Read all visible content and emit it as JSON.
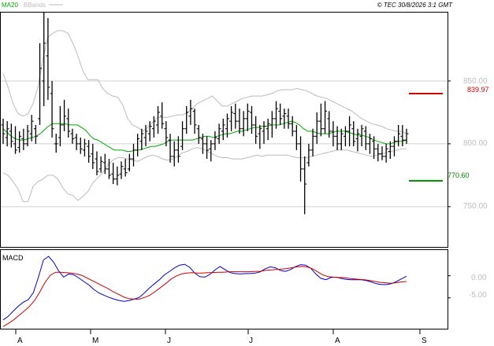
{
  "header": {
    "legend_ma": "MA20",
    "legend_bb": "BBands",
    "copyright": "© TEC 30/8/2026 3:1 GMT"
  },
  "price_panel": {
    "ylabels": [
      "850.00",
      "800.00",
      "750.00"
    ],
    "resistance_label": "839.97",
    "support_label": "770.60"
  },
  "macd_panel": {
    "title": "MACD",
    "ylabels": [
      "0.00",
      "-5.00"
    ]
  },
  "xaxis": {
    "months": [
      "A",
      "M",
      "J",
      "J",
      "A",
      "S"
    ]
  },
  "colors": {
    "ma": "#00aa00",
    "bbands": "#bbbbbb",
    "resistance": "#cc0000",
    "support": "#008800",
    "macd_line": "#0000cc",
    "signal_line": "#cc0000",
    "bars": "#000000"
  },
  "chart_data": [
    {
      "type": "ohlc",
      "name": "price",
      "ylim": [
        718,
        905
      ],
      "yticks": [
        850,
        800,
        750
      ],
      "resistance": 839.97,
      "support": 770.6,
      "bars": [
        {
          "h": 820,
          "l": 800,
          "o": 815,
          "c": 808
        },
        {
          "h": 818,
          "l": 798,
          "o": 805,
          "c": 812
        },
        {
          "h": 816,
          "l": 797,
          "o": 810,
          "c": 802
        },
        {
          "h": 814,
          "l": 792,
          "o": 800,
          "c": 795
        },
        {
          "h": 810,
          "l": 793,
          "o": 797,
          "c": 806
        },
        {
          "h": 812,
          "l": 795,
          "o": 804,
          "c": 800
        },
        {
          "h": 815,
          "l": 798,
          "o": 800,
          "c": 810
        },
        {
          "h": 823,
          "l": 802,
          "o": 808,
          "c": 818
        },
        {
          "h": 815,
          "l": 800,
          "o": 812,
          "c": 806
        },
        {
          "h": 880,
          "l": 815,
          "o": 820,
          "c": 860
        },
        {
          "h": 905,
          "l": 830,
          "o": 850,
          "c": 880
        },
        {
          "h": 900,
          "l": 835,
          "o": 870,
          "c": 845
        },
        {
          "h": 850,
          "l": 805,
          "o": 840,
          "c": 812
        },
        {
          "h": 808,
          "l": 793,
          "o": 800,
          "c": 800
        },
        {
          "h": 830,
          "l": 798,
          "o": 805,
          "c": 815
        },
        {
          "h": 835,
          "l": 810,
          "o": 815,
          "c": 822
        },
        {
          "h": 828,
          "l": 805,
          "o": 820,
          "c": 810
        },
        {
          "h": 812,
          "l": 800,
          "o": 808,
          "c": 804
        },
        {
          "h": 808,
          "l": 795,
          "o": 805,
          "c": 800
        },
        {
          "h": 805,
          "l": 792,
          "o": 800,
          "c": 796
        },
        {
          "h": 804,
          "l": 790,
          "o": 795,
          "c": 800
        },
        {
          "h": 803,
          "l": 785,
          "o": 798,
          "c": 790
        },
        {
          "h": 800,
          "l": 780,
          "o": 792,
          "c": 785
        },
        {
          "h": 794,
          "l": 775,
          "o": 788,
          "c": 778
        },
        {
          "h": 790,
          "l": 777,
          "o": 780,
          "c": 786
        },
        {
          "h": 792,
          "l": 776,
          "o": 785,
          "c": 780
        },
        {
          "h": 788,
          "l": 772,
          "o": 780,
          "c": 775
        },
        {
          "h": 785,
          "l": 768,
          "o": 776,
          "c": 772
        },
        {
          "h": 782,
          "l": 767,
          "o": 772,
          "c": 775
        },
        {
          "h": 786,
          "l": 772,
          "o": 776,
          "c": 782
        },
        {
          "h": 788,
          "l": 774,
          "o": 780,
          "c": 777
        },
        {
          "h": 792,
          "l": 778,
          "o": 780,
          "c": 788
        },
        {
          "h": 800,
          "l": 782,
          "o": 788,
          "c": 795
        },
        {
          "h": 808,
          "l": 790,
          "o": 795,
          "c": 804
        },
        {
          "h": 812,
          "l": 795,
          "o": 802,
          "c": 808
        },
        {
          "h": 815,
          "l": 798,
          "o": 805,
          "c": 810
        },
        {
          "h": 818,
          "l": 802,
          "o": 808,
          "c": 814
        },
        {
          "h": 822,
          "l": 805,
          "o": 812,
          "c": 818
        },
        {
          "h": 830,
          "l": 808,
          "o": 815,
          "c": 825
        },
        {
          "h": 833,
          "l": 812,
          "o": 822,
          "c": 816
        },
        {
          "h": 818,
          "l": 798,
          "o": 812,
          "c": 805
        },
        {
          "h": 808,
          "l": 785,
          "o": 803,
          "c": 790
        },
        {
          "h": 802,
          "l": 782,
          "o": 790,
          "c": 795
        },
        {
          "h": 806,
          "l": 785,
          "o": 795,
          "c": 790
        },
        {
          "h": 818,
          "l": 795,
          "o": 798,
          "c": 812
        },
        {
          "h": 830,
          "l": 808,
          "o": 812,
          "c": 825
        },
        {
          "h": 835,
          "l": 815,
          "o": 822,
          "c": 828
        },
        {
          "h": 828,
          "l": 808,
          "o": 826,
          "c": 815
        },
        {
          "h": 815,
          "l": 800,
          "o": 812,
          "c": 805
        },
        {
          "h": 808,
          "l": 792,
          "o": 804,
          "c": 800
        },
        {
          "h": 806,
          "l": 788,
          "o": 800,
          "c": 795
        },
        {
          "h": 803,
          "l": 786,
          "o": 796,
          "c": 800
        },
        {
          "h": 810,
          "l": 795,
          "o": 800,
          "c": 805
        },
        {
          "h": 816,
          "l": 800,
          "o": 804,
          "c": 812
        },
        {
          "h": 820,
          "l": 803,
          "o": 810,
          "c": 815
        },
        {
          "h": 824,
          "l": 805,
          "o": 812,
          "c": 820
        },
        {
          "h": 830,
          "l": 810,
          "o": 818,
          "c": 825
        },
        {
          "h": 832,
          "l": 812,
          "o": 824,
          "c": 818
        },
        {
          "h": 828,
          "l": 808,
          "o": 818,
          "c": 812
        },
        {
          "h": 826,
          "l": 806,
          "o": 812,
          "c": 820
        },
        {
          "h": 832,
          "l": 810,
          "o": 820,
          "c": 826
        },
        {
          "h": 830,
          "l": 808,
          "o": 825,
          "c": 815
        },
        {
          "h": 822,
          "l": 800,
          "o": 815,
          "c": 806
        },
        {
          "h": 815,
          "l": 796,
          "o": 808,
          "c": 812
        },
        {
          "h": 818,
          "l": 800,
          "o": 810,
          "c": 814
        },
        {
          "h": 820,
          "l": 803,
          "o": 812,
          "c": 816
        },
        {
          "h": 826,
          "l": 805,
          "o": 815,
          "c": 820
        },
        {
          "h": 834,
          "l": 812,
          "o": 820,
          "c": 828
        },
        {
          "h": 832,
          "l": 815,
          "o": 826,
          "c": 820
        },
        {
          "h": 828,
          "l": 812,
          "o": 822,
          "c": 824
        },
        {
          "h": 828,
          "l": 812,
          "o": 822,
          "c": 816
        },
        {
          "h": 822,
          "l": 806,
          "o": 816,
          "c": 810
        },
        {
          "h": 815,
          "l": 795,
          "o": 810,
          "c": 800
        },
        {
          "h": 806,
          "l": 770,
          "o": 800,
          "c": 780
        },
        {
          "h": 790,
          "l": 744,
          "o": 780,
          "c": 768
        },
        {
          "h": 800,
          "l": 782,
          "o": 785,
          "c": 795
        },
        {
          "h": 812,
          "l": 790,
          "o": 795,
          "c": 806
        },
        {
          "h": 825,
          "l": 800,
          "o": 806,
          "c": 818
        },
        {
          "h": 832,
          "l": 806,
          "o": 818,
          "c": 812
        },
        {
          "h": 834,
          "l": 808,
          "o": 812,
          "c": 826
        },
        {
          "h": 826,
          "l": 805,
          "o": 820,
          "c": 810
        },
        {
          "h": 818,
          "l": 798,
          "o": 810,
          "c": 806
        },
        {
          "h": 814,
          "l": 795,
          "o": 806,
          "c": 800
        },
        {
          "h": 812,
          "l": 795,
          "o": 800,
          "c": 808
        },
        {
          "h": 814,
          "l": 798,
          "o": 806,
          "c": 810
        },
        {
          "h": 822,
          "l": 798,
          "o": 810,
          "c": 815
        },
        {
          "h": 818,
          "l": 798,
          "o": 812,
          "c": 802
        },
        {
          "h": 812,
          "l": 794,
          "o": 804,
          "c": 808
        },
        {
          "h": 815,
          "l": 798,
          "o": 806,
          "c": 812
        },
        {
          "h": 814,
          "l": 795,
          "o": 810,
          "c": 800
        },
        {
          "h": 808,
          "l": 792,
          "o": 800,
          "c": 804
        },
        {
          "h": 806,
          "l": 788,
          "o": 802,
          "c": 796
        },
        {
          "h": 800,
          "l": 786,
          "o": 796,
          "c": 792
        },
        {
          "h": 798,
          "l": 787,
          "o": 792,
          "c": 790
        },
        {
          "h": 800,
          "l": 785,
          "o": 790,
          "c": 796
        },
        {
          "h": 802,
          "l": 788,
          "o": 794,
          "c": 798
        },
        {
          "h": 806,
          "l": 790,
          "o": 798,
          "c": 802
        },
        {
          "h": 815,
          "l": 798,
          "o": 802,
          "c": 808
        },
        {
          "h": 815,
          "l": 798,
          "o": 806,
          "c": 803
        },
        {
          "h": 812,
          "l": 800,
          "o": 803,
          "c": 808
        }
      ],
      "ma20": [
        812,
        809,
        806,
        804,
        803,
        803,
        804,
        805,
        806,
        808,
        811,
        814,
        816,
        816,
        816,
        816,
        815,
        815,
        815,
        813,
        811,
        807,
        804,
        803,
        801,
        799,
        797,
        795,
        795,
        795,
        794,
        794,
        795,
        795,
        796,
        797,
        798,
        798,
        799,
        800,
        802,
        803,
        803,
        803,
        803,
        803,
        803,
        804,
        805,
        806,
        806,
        805,
        806,
        807,
        808,
        808,
        809,
        810,
        810,
        811,
        812,
        813,
        813,
        814,
        814,
        815,
        815,
        815,
        816,
        817,
        818,
        817,
        815,
        812,
        810,
        810,
        809,
        808,
        808,
        808,
        809,
        810,
        810,
        810,
        809,
        808,
        807,
        807,
        806,
        805,
        803,
        802,
        801,
        800,
        800,
        801,
        802,
        802,
        803
      ],
      "bb_upper": [
        856,
        845,
        832,
        824,
        822,
        824,
        832,
        845,
        868,
        885,
        888,
        890,
        890,
        888,
        880,
        870,
        858,
        851,
        851,
        851,
        844,
        840,
        838,
        837,
        831,
        820,
        815,
        813,
        810,
        813,
        817,
        821,
        821,
        821,
        822,
        823,
        823,
        825,
        828,
        832,
        834,
        836,
        838,
        834,
        830,
        830,
        832,
        834,
        836,
        837,
        838,
        838,
        838,
        839,
        840,
        842,
        843,
        843,
        843,
        844,
        843,
        842,
        840,
        838,
        837,
        836,
        834,
        832,
        830,
        828,
        826,
        823,
        820,
        818,
        816,
        815,
        814,
        812,
        811,
        810,
        810,
        808
      ],
      "bb_lower": [
        777,
        775,
        770,
        764,
        754,
        754,
        766,
        770,
        772,
        775,
        775,
        772,
        765,
        760,
        759,
        755,
        758,
        762,
        769,
        773,
        777,
        783,
        787,
        789,
        789,
        788,
        787,
        786,
        788,
        790,
        791,
        790,
        788,
        787,
        788,
        790,
        793,
        794,
        796,
        797,
        796,
        794,
        792,
        790,
        789,
        789,
        788,
        788,
        788,
        789,
        790,
        791,
        790,
        791,
        791,
        791,
        791,
        791,
        790,
        789,
        789,
        789,
        790,
        791,
        792,
        793,
        794,
        795,
        795,
        795,
        794,
        793,
        792,
        791,
        790,
        791,
        792,
        793,
        794,
        795,
        796,
        796
      ]
    },
    {
      "type": "line",
      "name": "macd",
      "ylim": [
        -12.0,
        6.0
      ],
      "yticks": [
        0,
        -5
      ],
      "series": [
        {
          "name": "MACD",
          "values": [
            -10.0,
            -9.2,
            -8.0,
            -6.9,
            -6.0,
            -5.4,
            -3.8,
            -0.3,
            3.6,
            4.4,
            3.1,
            1.1,
            -0.3,
            0.4,
            0.2,
            -0.5,
            -1.3,
            -2.1,
            -3.1,
            -3.9,
            -4.4,
            -4.9,
            -5.3,
            -5.6,
            -5.8,
            -5.6,
            -5.3,
            -4.9,
            -3.9,
            -2.8,
            -1.8,
            -0.9,
            0.2,
            1.0,
            1.8,
            2.4,
            2.6,
            1.9,
            0.6,
            -0.2,
            -0.3,
            0.3,
            1.3,
            2.1,
            1.4,
            0.7,
            0.5,
            0.4,
            0.5,
            0.5,
            0.6,
            0.9,
            1.6,
            2.0,
            1.8,
            1.2,
            1.0,
            1.4,
            2.1,
            2.5,
            2.4,
            1.7,
            0.4,
            -0.6,
            -0.9,
            -0.4,
            -0.3,
            -0.6,
            -0.8,
            -0.9,
            -0.9,
            -0.9,
            -1.1,
            -1.4,
            -1.8,
            -2.0,
            -2.0,
            -1.8,
            -1.3,
            -0.7,
            -0.1
          ]
        },
        {
          "name": "Signal",
          "values": [
            -11.5,
            -10.8,
            -10.0,
            -9.0,
            -8.0,
            -7.0,
            -5.6,
            -3.7,
            -1.5,
            0.1,
            0.8,
            0.8,
            0.7,
            0.6,
            0.4,
            0.1,
            -0.5,
            -1.1,
            -1.7,
            -2.3,
            -2.9,
            -3.6,
            -4.2,
            -4.8,
            -5.2,
            -5.3,
            -5.3,
            -4.9,
            -4.4,
            -3.6,
            -2.7,
            -1.8,
            -0.8,
            -0.1,
            0.4,
            0.6,
            0.7,
            0.6,
            0.6,
            0.7,
            0.7,
            0.8,
            0.8,
            0.9,
            0.9,
            0.9,
            0.9,
            0.9,
            1.0,
            1.0,
            1.2,
            1.3,
            1.4,
            1.5,
            1.6,
            1.8,
            2.0,
            2.1,
            2.0,
            1.6,
            0.9,
            0.2,
            -0.2,
            -0.3,
            -0.4,
            -0.4,
            -0.6,
            -0.7,
            -0.8,
            -0.9,
            -1.1,
            -1.3,
            -1.5,
            -1.6,
            -1.7,
            -1.6,
            -1.4,
            -1.3
          ]
        }
      ]
    }
  ]
}
